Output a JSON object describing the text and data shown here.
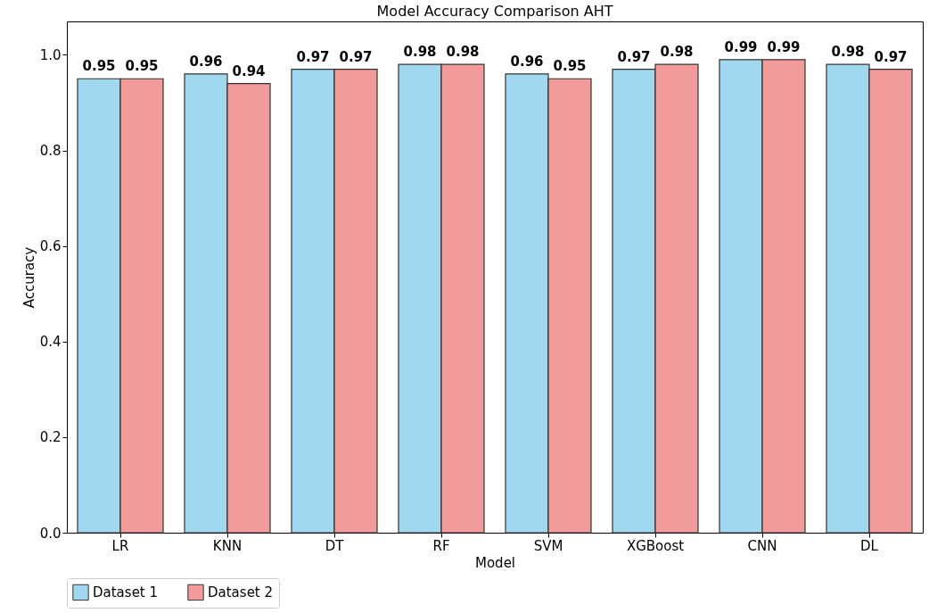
{
  "chart_data": {
    "type": "bar",
    "title": "Model Accuracy Comparison AHT",
    "xlabel": "Model",
    "ylabel": "Accuracy",
    "categories": [
      "LR",
      "KNN",
      "DT",
      "RF",
      "SVM",
      "XGBoost",
      "CNN",
      "DL"
    ],
    "series": [
      {
        "name": "Dataset 1",
        "color": "#a0d8ef",
        "values": [
          0.95,
          0.96,
          0.97,
          0.98,
          0.96,
          0.97,
          0.99,
          0.98
        ]
      },
      {
        "name": "Dataset 2",
        "color": "#f39a9a",
        "values": [
          0.95,
          0.94,
          0.97,
          0.98,
          0.95,
          0.98,
          0.99,
          0.97
        ]
      }
    ],
    "ylim": [
      0,
      1.07
    ],
    "yticks": [
      {
        "value": 0,
        "label": "0.0"
      },
      0.2,
      0.4,
      0.6,
      0.8,
      {
        "value": 1,
        "label": "1.0"
      }
    ],
    "data_labels": true,
    "legend": "bottom",
    "grid": false
  }
}
